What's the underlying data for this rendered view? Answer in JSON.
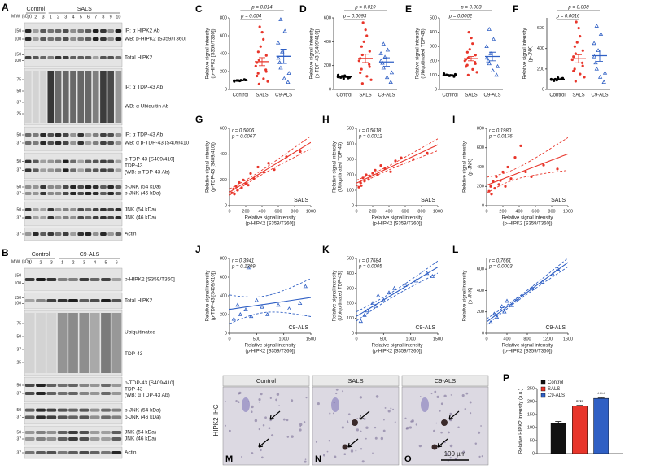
{
  "blots": [
    {
      "panel": "A",
      "mw_header": "M.W. (kDa)",
      "groups": [
        "Control",
        "SALS"
      ],
      "lanes": [
        1,
        2,
        3,
        1,
        2,
        3,
        4,
        5,
        6,
        7,
        8,
        9,
        10
      ],
      "rows": [
        {
          "labels": [
            "IP: α HIPK2 Ab",
            "WB: p-HIPK2 [S359/T360]"
          ],
          "mw": [
            150,
            100
          ]
        },
        {
          "labels": [
            "Total HIPK2"
          ],
          "mw": [
            150,
            100
          ]
        },
        {
          "labels": [
            "IP: α TDP-43 Ab",
            "WB: α Ubiquitin Ab"
          ],
          "mw": [
            75,
            50,
            37,
            25
          ]
        },
        {
          "labels": [
            "IP: α TDP-43 Ab",
            "WB: α p-TDP-43 [S409/410]"
          ],
          "mw": [
            50,
            37
          ]
        },
        {
          "labels": [
            "p-TDP-43 [S409/410]",
            "TDP-43",
            "(WB: α TDP-43 Ab)"
          ],
          "mw": [
            50,
            37
          ]
        },
        {
          "labels": [
            "p-JNK (54 kDa)",
            "p-JNK (46 kDa)"
          ],
          "mw": [
            50,
            37
          ]
        },
        {
          "labels": [
            "JNK (54 kDa)",
            "JNK (46 kDa)"
          ],
          "mw": [
            50,
            37
          ]
        },
        {
          "labels": [
            "Actin"
          ],
          "mw": [
            37
          ]
        }
      ]
    },
    {
      "panel": "B",
      "mw_header": "M.W. (kDa)",
      "groups": [
        "Control",
        "C9-ALS"
      ],
      "lanes": [
        1,
        2,
        3,
        1,
        2,
        3,
        4,
        5,
        6
      ],
      "rows": [
        {
          "labels": [
            "p-HIPK2 [S359/T360]"
          ],
          "mw": [
            150,
            100
          ]
        },
        {
          "labels": [
            "Total HIPK2"
          ],
          "mw": [
            150,
            100
          ]
        },
        {
          "labels": [
            "Ubiquitinated",
            "TDP-43"
          ],
          "mw": [
            75,
            50,
            37,
            25
          ]
        },
        {
          "labels": [
            "p-TDP-43 [S409/410]",
            "TDP-43",
            "(WB: α TDP-43 Ab)"
          ],
          "mw": [
            50,
            37
          ]
        },
        {
          "labels": [
            "p-JNK (54 kDa)",
            "p-JNK (46 kDa)"
          ],
          "mw": [
            50,
            37
          ]
        },
        {
          "labels": [
            "JNK (54 kDa)",
            "JNK (46 kDa)"
          ],
          "mw": [
            50,
            37
          ]
        },
        {
          "labels": [
            "Actin"
          ],
          "mw": [
            37
          ]
        }
      ]
    }
  ],
  "chart_data": [
    {
      "type": "strip",
      "panel": "C",
      "ylabel": [
        "Relative signal intensity",
        "(p-HIPK2 [S359/T360])"
      ],
      "categories": [
        "Control",
        "SALS",
        "C9-ALS"
      ],
      "colors": [
        "#000000",
        "#e8352a",
        "#2f5fc4"
      ],
      "markers": [
        "circle",
        "circle",
        "triangle"
      ],
      "groups": [
        [
          95,
          100,
          105,
          90,
          110,
          98,
          102,
          100
        ],
        [
          60,
          90,
          120,
          150,
          180,
          200,
          220,
          260,
          300,
          330,
          380,
          420,
          480,
          560,
          640,
          700
        ],
        [
          80,
          120,
          180,
          240,
          300,
          350,
          420,
          520,
          650,
          780
        ]
      ],
      "means": [
        100,
        310,
        370
      ],
      "errors": [
        5,
        45,
        80
      ],
      "ylim": [
        0,
        800
      ],
      "yticks": [
        0,
        200,
        400,
        600,
        800
      ],
      "brackets": [
        "p = 0.004",
        "p = 0.014"
      ]
    },
    {
      "type": "strip",
      "panel": "D",
      "ylabel": [
        "Relative signal intensity",
        "(p-TDP-43 [S409/410])"
      ],
      "categories": [
        "Control",
        "SALS",
        "C9-ALS"
      ],
      "colors": [
        "#000000",
        "#e8352a",
        "#2f5fc4"
      ],
      "markers": [
        "circle",
        "circle",
        "triangle"
      ],
      "groups": [
        [
          90,
          110,
          100,
          120,
          95,
          105,
          115,
          100
        ],
        [
          50,
          80,
          110,
          140,
          170,
          190,
          210,
          240,
          260,
          290,
          320,
          360,
          400,
          450,
          500,
          560
        ],
        [
          60,
          100,
          140,
          180,
          220,
          240,
          270,
          300,
          330,
          380
        ]
      ],
      "means": [
        105,
        260,
        230
      ],
      "errors": [
        5,
        35,
        35
      ],
      "ylim": [
        0,
        600
      ],
      "yticks": [
        0,
        200,
        400,
        600
      ],
      "brackets": [
        "p = 0.0093",
        "p = 0.019"
      ]
    },
    {
      "type": "strip",
      "panel": "E",
      "ylabel": [
        "Relative signal intensity",
        "(Ubiquitinated TDP-43)"
      ],
      "categories": [
        "Control",
        "SALS",
        "C9-ALS"
      ],
      "colors": [
        "#000000",
        "#e8352a",
        "#2f5fc4"
      ],
      "markers": [
        "circle",
        "circle",
        "triangle"
      ],
      "groups": [
        [
          95,
          100,
          105,
          110,
          90,
          100,
          98,
          102
        ],
        [
          100,
          120,
          140,
          160,
          170,
          180,
          190,
          200,
          210,
          220,
          240,
          260,
          280,
          320,
          360,
          400
        ],
        [
          100,
          130,
          160,
          180,
          200,
          220,
          250,
          300,
          350,
          420
        ]
      ],
      "means": [
        100,
        215,
        230
      ],
      "errors": [
        3,
        15,
        30
      ],
      "ylim": [
        0,
        500
      ],
      "yticks": [
        0,
        100,
        200,
        300,
        400,
        500
      ],
      "brackets": [
        "p = 0.0002",
        "p = 0.003"
      ]
    },
    {
      "type": "strip",
      "panel": "F",
      "ylabel": [
        "Relative signal intensity",
        "(p-JNK)"
      ],
      "categories": [
        "Control",
        "SALS",
        "C9-ALS"
      ],
      "colors": [
        "#000000",
        "#e8352a",
        "#2f5fc4"
      ],
      "markers": [
        "circle",
        "circle",
        "triangle"
      ],
      "groups": [
        [
          90,
          100,
          110,
          95,
          105,
          100,
          115,
          85
        ],
        [
          80,
          120,
          150,
          180,
          200,
          230,
          260,
          290,
          320,
          350,
          380,
          420,
          460,
          520,
          600,
          660
        ],
        [
          70,
          120,
          160,
          200,
          260,
          320,
          380,
          450,
          540,
          620
        ]
      ],
      "means": [
        100,
        300,
        330
      ],
      "errors": [
        5,
        40,
        55
      ],
      "ylim": [
        0,
        700
      ],
      "yticks": [
        0,
        200,
        400,
        600
      ],
      "brackets": [
        "p = 0.0016",
        "p = 0.008"
      ]
    },
    {
      "type": "scatter",
      "panel": "G",
      "group": "SALS",
      "color": "#e8352a",
      "marker": "circle",
      "annotations": [
        "r = 0.5006",
        "p = 0.0067"
      ],
      "ylabel": [
        "Relative signal intensity",
        "(p-TDP-43 [S409/410])"
      ],
      "xlabel": [
        "Relative signal intensity",
        "(p-HIPK2 [S359/T360])"
      ],
      "x": [
        30,
        50,
        60,
        80,
        100,
        120,
        150,
        170,
        200,
        230,
        260,
        300,
        350,
        420,
        480,
        550,
        700,
        870
      ],
      "y": [
        100,
        130,
        90,
        150,
        120,
        180,
        140,
        200,
        170,
        160,
        250,
        210,
        300,
        260,
        330,
        280,
        380,
        420
      ],
      "xlim": [
        0,
        1000
      ],
      "xticks": [
        0,
        200,
        400,
        600,
        800,
        1000
      ],
      "ylim": [
        0,
        600
      ],
      "yticks": [
        0,
        200,
        400,
        600
      ]
    },
    {
      "type": "scatter",
      "panel": "H",
      "group": "SALS",
      "color": "#e8352a",
      "marker": "circle",
      "annotations": [
        "r = 0.5618",
        "p = 0.0012"
      ],
      "ylabel": [
        "Relative signal intensity",
        "(Ubiquitinated TDP-43)"
      ],
      "xlabel": [
        "Relative signal intensity",
        "(p-HIPK2 [S359/T360])"
      ],
      "x": [
        30,
        50,
        60,
        80,
        100,
        120,
        150,
        170,
        200,
        230,
        260,
        300,
        350,
        420,
        480,
        550,
        700,
        870
      ],
      "y": [
        120,
        150,
        130,
        180,
        160,
        200,
        170,
        190,
        210,
        230,
        200,
        260,
        240,
        220,
        290,
        310,
        300,
        340
      ],
      "xlim": [
        0,
        1000
      ],
      "xticks": [
        0,
        200,
        400,
        600,
        800,
        1000
      ],
      "ylim": [
        0,
        500
      ],
      "yticks": [
        0,
        100,
        200,
        300,
        400,
        500
      ]
    },
    {
      "type": "scatter",
      "panel": "I",
      "group": "SALS",
      "color": "#e8352a",
      "marker": "circle",
      "annotations": [
        "r = 0.1980",
        "p = 0.0176"
      ],
      "ylabel": [
        "Relative signal intensity",
        "(p-JNK)"
      ],
      "xlabel": [
        "Relative signal intensity",
        "(p-HIPK2 [S359/T360])"
      ],
      "x": [
        30,
        50,
        60,
        80,
        100,
        120,
        150,
        170,
        200,
        230,
        260,
        300,
        350,
        420,
        480,
        550,
        700,
        870
      ],
      "y": [
        150,
        200,
        120,
        250,
        180,
        300,
        220,
        260,
        350,
        200,
        400,
        280,
        500,
        620,
        350,
        300,
        420,
        380
      ],
      "xlim": [
        0,
        1000
      ],
      "xticks": [
        0,
        200,
        400,
        600,
        800,
        1000
      ],
      "ylim": [
        0,
        800
      ],
      "yticks": [
        0,
        200,
        400,
        600,
        800
      ]
    },
    {
      "type": "scatter",
      "panel": "J",
      "group": "C9-ALS",
      "color": "#2f5fc4",
      "marker": "triangle",
      "annotations": [
        "r = 0.3941",
        "p = 0.1309"
      ],
      "ylabel": [
        "Relative signal intensity",
        "(p-TDP-43 [S409/410])"
      ],
      "xlabel": [
        "Relative signal intensity",
        "(p-HIPK2 [S359/T360])"
      ],
      "x": [
        80,
        150,
        200,
        300,
        350,
        400,
        500,
        600,
        700,
        900,
        1100,
        1300,
        1400
      ],
      "y": [
        150,
        300,
        200,
        250,
        700,
        180,
        350,
        280,
        200,
        300,
        260,
        320,
        500
      ],
      "xlim": [
        0,
        1500
      ],
      "xticks": [
        0,
        500,
        1000,
        1500
      ],
      "ylim": [
        0,
        800
      ],
      "yticks": [
        0,
        200,
        400,
        600,
        800
      ]
    },
    {
      "type": "scatter",
      "panel": "K",
      "group": "C9-ALS",
      "color": "#2f5fc4",
      "marker": "triangle",
      "annotations": [
        "r = 0.7684",
        "p = 0.0005"
      ],
      "ylabel": [
        "Relative signal intensity",
        "(Ubiquitinated TDP-43)"
      ],
      "xlabel": [
        "Relative signal intensity",
        "(p-HIPK2 [S359/T360])"
      ],
      "x": [
        80,
        150,
        200,
        300,
        350,
        400,
        500,
        600,
        700,
        900,
        1100,
        1300,
        1400
      ],
      "y": [
        80,
        120,
        150,
        200,
        180,
        250,
        220,
        270,
        300,
        320,
        350,
        400,
        380
      ],
      "xlim": [
        0,
        1500
      ],
      "xticks": [
        0,
        500,
        1000,
        1500
      ],
      "ylim": [
        0,
        500
      ],
      "yticks": [
        0,
        100,
        200,
        300,
        400,
        500
      ]
    },
    {
      "type": "scatter",
      "panel": "L",
      "group": "C9-ALS",
      "color": "#2f5fc4",
      "marker": "triangle",
      "annotations": [
        "r = 0.7661",
        "p = 0.0003"
      ],
      "ylabel": [
        "Relative signal intensity",
        "(p-JNK)"
      ],
      "xlabel": [
        "Relative signal intensity",
        "(p-HIPK2 [S359/T360])"
      ],
      "x": [
        80,
        150,
        200,
        300,
        350,
        400,
        500,
        600,
        700,
        900,
        1100,
        1300,
        1400
      ],
      "y": [
        100,
        180,
        150,
        250,
        200,
        300,
        260,
        320,
        350,
        420,
        480,
        550,
        600
      ],
      "xlim": [
        0,
        1600
      ],
      "xticks": [
        0,
        400,
        800,
        1200,
        1600
      ],
      "ylim": [
        0,
        700
      ],
      "yticks": [
        0,
        200,
        400,
        600
      ]
    },
    {
      "type": "bar",
      "panel": "P",
      "ylabel": "Relative HIPK2 intensity (a.u.)",
      "series": [
        {
          "name": "Control",
          "color": "#111111",
          "values": [
            115
          ],
          "errors": [
            8
          ]
        },
        {
          "name": "SALS",
          "color": "#e8352a",
          "values": [
            182
          ],
          "errors": [
            3
          ],
          "annotation": "****"
        },
        {
          "name": "C9-ALS",
          "color": "#2f5fc4",
          "values": [
            212
          ],
          "errors": [
            3
          ],
          "annotation": "****"
        }
      ],
      "ylim": [
        0,
        250
      ],
      "yticks": [
        0,
        50,
        100,
        150,
        200,
        250
      ]
    }
  ],
  "ihc": {
    "label": "HIPK2 IHC",
    "panels": [
      {
        "title": "Control",
        "letter": "M"
      },
      {
        "title": "SALS",
        "letter": "N"
      },
      {
        "title": "C9-ALS",
        "letter": "O"
      }
    ],
    "scale_bar": "100 µm"
  }
}
